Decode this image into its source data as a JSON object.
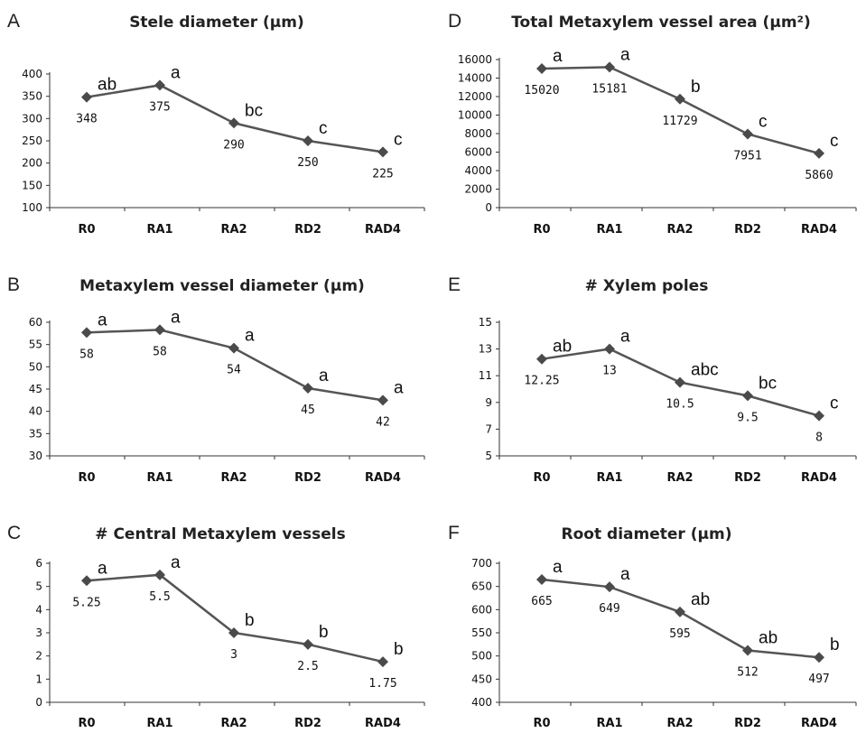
{
  "chart_data": [
    {
      "panel": "A",
      "type": "line",
      "title": "Stele diameter (µm)",
      "categories": [
        "R0",
        "RA1",
        "RA2",
        "RD2",
        "RAD4"
      ],
      "values": [
        348,
        375,
        290,
        250,
        225
      ],
      "value_labels": [
        "348",
        "375",
        "290",
        "250",
        "225"
      ],
      "letters": [
        "ab",
        "a",
        "bc",
        "c",
        "c"
      ],
      "ylim": [
        100,
        400
      ],
      "yticks": [
        "100",
        "150",
        "200",
        "250",
        "300",
        "350",
        "400"
      ]
    },
    {
      "panel": "D",
      "type": "line",
      "title": "Total Metaxylem vessel area (µm²)",
      "categories": [
        "R0",
        "RA1",
        "RA2",
        "RD2",
        "RAD4"
      ],
      "values": [
        15020,
        15181,
        11729,
        7951,
        5860
      ],
      "value_labels": [
        "15020",
        "15181",
        "11729",
        "7951",
        "5860"
      ],
      "letters": [
        "a",
        "a",
        "b",
        "c",
        "c"
      ],
      "ylim": [
        0,
        16000
      ],
      "yticks": [
        "0",
        "2000",
        "4000",
        "6000",
        "8000",
        "10000",
        "12000",
        "14000",
        "16000"
      ]
    },
    {
      "panel": "B",
      "type": "line",
      "title": "Metaxylem vessel diameter (µm)",
      "categories": [
        "R0",
        "RA1",
        "RA2",
        "RD2",
        "RAD4"
      ],
      "values": [
        57.7,
        58.3,
        54.2,
        45.2,
        42.5
      ],
      "value_labels": [
        "58",
        "58",
        "54",
        "45",
        "42"
      ],
      "letters": [
        "a",
        "a",
        "a",
        "a",
        "a"
      ],
      "ylim": [
        30,
        60
      ],
      "yticks": [
        "30",
        "35",
        "40",
        "45",
        "50",
        "55",
        "60"
      ]
    },
    {
      "panel": "E",
      "type": "line",
      "title": "# Xylem poles",
      "categories": [
        "R0",
        "RA1",
        "RA2",
        "RD2",
        "RAD4"
      ],
      "values": [
        12.25,
        13,
        10.5,
        9.5,
        8
      ],
      "value_labels": [
        "12.25",
        "13",
        "10.5",
        "9.5",
        "8"
      ],
      "letters": [
        "ab",
        "a",
        "abc",
        "bc",
        "c"
      ],
      "ylim": [
        5,
        15
      ],
      "yticks": [
        "5",
        "7",
        "9",
        "11",
        "13",
        "15"
      ]
    },
    {
      "panel": "C",
      "type": "line",
      "title": "# Central Metaxylem vessels",
      "categories": [
        "R0",
        "RA1",
        "RA2",
        "RD2",
        "RAD4"
      ],
      "values": [
        5.25,
        5.5,
        3,
        2.5,
        1.75
      ],
      "value_labels": [
        "5.25",
        "5.5",
        "3",
        "2.5",
        "1.75"
      ],
      "letters": [
        "a",
        "a",
        "b",
        "b",
        "b"
      ],
      "ylim": [
        0,
        6
      ],
      "yticks": [
        "0",
        "1",
        "2",
        "3",
        "4",
        "5",
        "6"
      ]
    },
    {
      "panel": "F",
      "type": "line",
      "title": "Root diameter (µm)",
      "categories": [
        "R0",
        "RA1",
        "RA2",
        "RD2",
        "RAD4"
      ],
      "values": [
        665,
        649,
        595,
        512,
        497
      ],
      "value_labels": [
        "665",
        "649",
        "595",
        "512",
        "497"
      ],
      "letters": [
        "a",
        "a",
        "ab",
        "ab",
        "b"
      ],
      "ylim": [
        400,
        700
      ],
      "yticks": [
        "400",
        "450",
        "500",
        "550",
        "600",
        "650",
        "700"
      ]
    }
  ],
  "colors": {
    "line": "#555555",
    "marker": "#4a4a4a",
    "axis": "#333333",
    "text": "#111111"
  }
}
